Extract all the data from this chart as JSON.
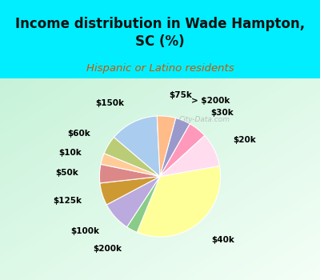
{
  "title": "Income distribution in Wade Hampton,\nSC (%)",
  "subtitle": "Hispanic or Latino residents",
  "bg_cyan": "#00EEFF",
  "bg_chart_color1": "#c8ecd8",
  "bg_chart_color2": "#e8f5f0",
  "slices": [
    {
      "label": "$40k",
      "value": 34,
      "color": "#FFFF99"
    },
    {
      "label": "$200k",
      "value": 3,
      "color": "#88CC88"
    },
    {
      "label": "$100k",
      "value": 8,
      "color": "#BBAADD"
    },
    {
      "label": "$125k",
      "value": 6,
      "color": "#CC9933"
    },
    {
      "label": "$50k",
      "value": 5,
      "color": "#DD8888"
    },
    {
      "label": "$10k",
      "value": 3,
      "color": "#FFCC99"
    },
    {
      "label": "$60k",
      "value": 5,
      "color": "#BBCC77"
    },
    {
      "label": "$150k",
      "value": 13,
      "color": "#AACCEE"
    },
    {
      "label": "$75k",
      "value": 5,
      "color": "#FFBB88"
    },
    {
      "label": "> $200k",
      "value": 4,
      "color": "#9999CC"
    },
    {
      "label": "$30k",
      "value": 5,
      "color": "#FF99BB"
    },
    {
      "label": "$20k",
      "value": 9,
      "color": "#FFDDEE"
    }
  ],
  "watermark": "City-Data.com",
  "title_fontsize": 12,
  "subtitle_fontsize": 9.5,
  "subtitle_color": "#CC5500",
  "label_fontsize": 7.5
}
